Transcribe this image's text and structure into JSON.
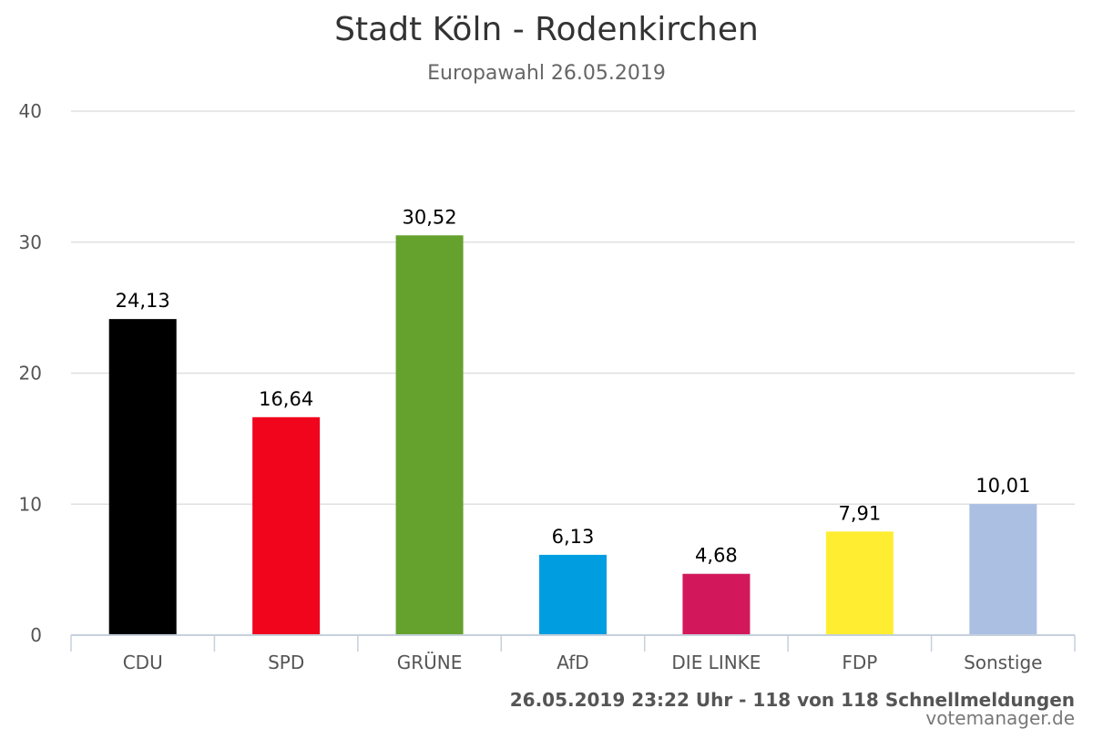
{
  "chart_data": {
    "type": "bar",
    "title": "Stadt Köln - Rodenkirchen",
    "subtitle": "Europawahl 26.05.2019",
    "categories": [
      "CDU",
      "SPD",
      "GRÜNE",
      "AfD",
      "DIE LINKE",
      "FDP",
      "Sonstige"
    ],
    "values": [
      24.13,
      16.64,
      30.52,
      6.13,
      4.68,
      7.91,
      10.01
    ],
    "value_labels": [
      "24,13",
      "16,64",
      "30,52",
      "6,13",
      "4,68",
      "7,91",
      "10,01"
    ],
    "colors": [
      "#000000",
      "#f0051d",
      "#64a12d",
      "#009ee0",
      "#d2185a",
      "#ffed32",
      "#abbfe3"
    ],
    "ylim": [
      0,
      40
    ],
    "yticks": [
      0,
      10,
      20,
      30,
      40
    ],
    "grid": true,
    "legend": "none",
    "xlabel": "",
    "ylabel": ""
  },
  "footer": {
    "credit": "26.05.2019 23:22 Uhr - 118 von 118 Schnellmeldungen",
    "source": "votemanager.de"
  }
}
